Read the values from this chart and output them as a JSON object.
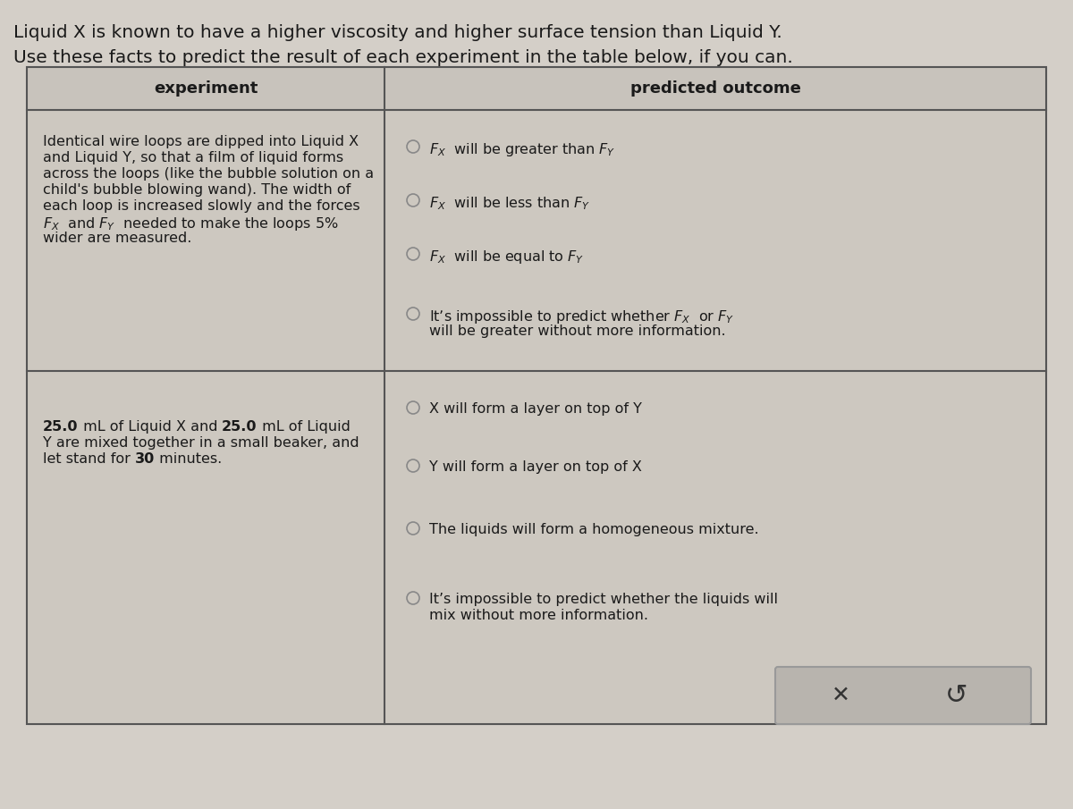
{
  "bg_color": "#d4cfc8",
  "table_bg": "#cdc8c0",
  "header_bg": "#c8c3bc",
  "cell_bg": "#cdc8c0",
  "button_bg": "#b8b4ae",
  "title_line1": "Liquid X is known to have a higher viscosity and higher surface tension than Liquid Y.",
  "title_line2": "Use these facts to predict the result of each experiment in the table below, if you can.",
  "col1_header": "experiment",
  "col2_header": "predicted outcome",
  "exp1_text": [
    "Identical wire loops are dipped into Liquid X",
    "and Liquid Y, so that a film of liquid forms",
    "across the loops (like the bubble solution on a",
    "child's bubble blowing wand). The width of",
    "each loop is increased slowly and the forces"
  ],
  "exp1_math": "$F_X$  and $F_Y$  needed to make the loops 5%",
  "exp1_end": "wider are measured.",
  "exp2_lines": [
    "25.0 mL of Liquid X and 25.0 mL of Liquid",
    "Y are mixed together in a small beaker, and",
    "let stand for 30 minutes."
  ],
  "exp2_bold_nums": [
    "25.0",
    "25.0",
    "30"
  ],
  "outcomes1": [
    "$F_X$  will be greater than $F_Y$",
    "$F_X$  will be less than $F_Y$",
    "$F_X$  will be equal to $F_Y$",
    "It’s impossible to predict whether $F_X$  or $F_Y$\nwill be greater without more information."
  ],
  "outcomes2": [
    "X will form a layer on top of Y",
    "Y will form a layer on top of X",
    "The liquids will form a homogeneous mixture.",
    "It’s impossible to predict whether the liquids will\nmix without more information."
  ],
  "text_color": "#1a1a1a",
  "circle_color": "#888888",
  "border_color": "#555555",
  "font_size_title": 14.5,
  "font_size_header": 13,
  "font_size_body": 11.5,
  "font_size_math": 12
}
